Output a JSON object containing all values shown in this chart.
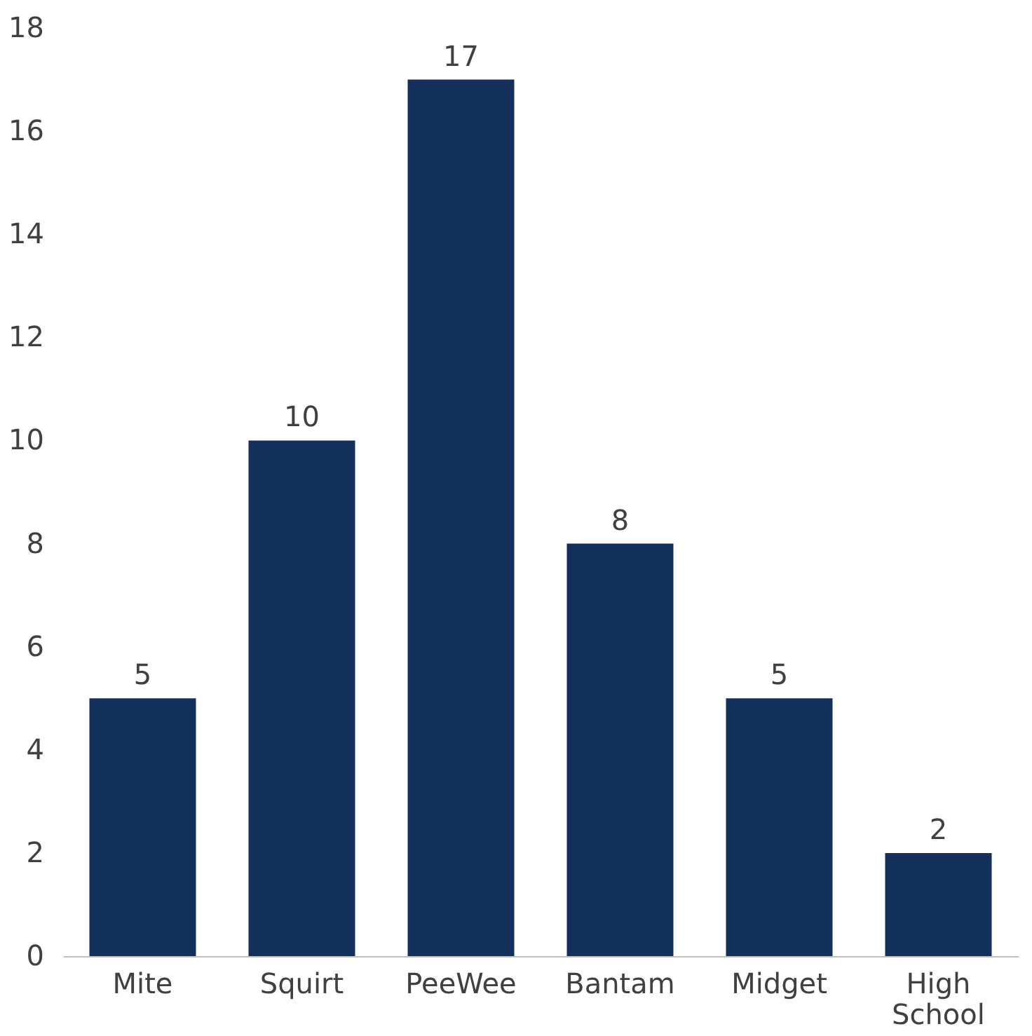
{
  "chart_data": {
    "type": "bar",
    "categories": [
      "Mite",
      "Squirt",
      "PeeWee",
      "Bantam",
      "Midget",
      "High School"
    ],
    "values": [
      5,
      10,
      17,
      8,
      5,
      2
    ],
    "color": "#12305a",
    "ylim": [
      0,
      18
    ],
    "yticks": [
      0,
      2,
      4,
      6,
      8,
      10,
      12,
      14,
      16,
      18
    ],
    "grid": false,
    "data_labels": true
  }
}
